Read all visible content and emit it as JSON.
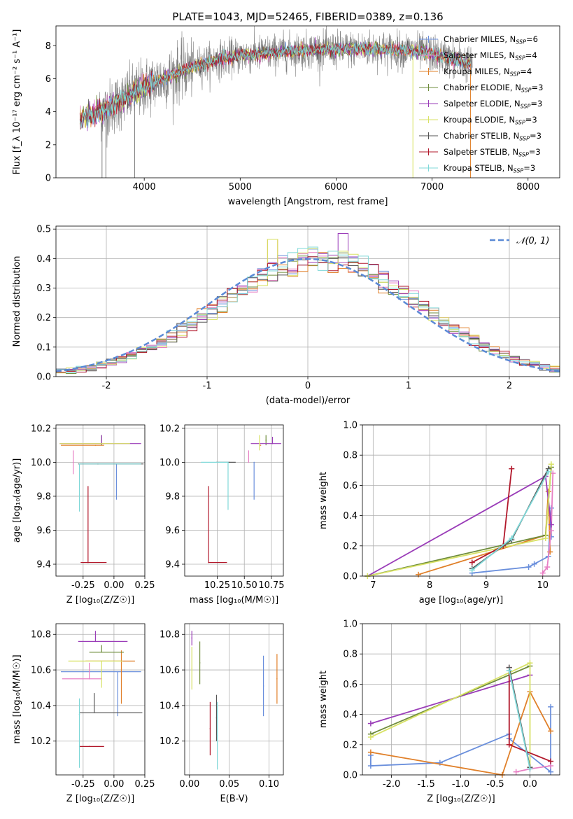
{
  "colors": {
    "Chabrier MILES": "#6a8fdc",
    "Salpeter MILES": "#e87fc4",
    "Kroupa MILES": "#e0802a",
    "Chabrier ELODIE": "#6f8d3c",
    "Salpeter ELODIE": "#9a3cb8",
    "Kroupa ELODIE": "#d8e266",
    "Chabrier STELIB": "#555555",
    "Salpeter STELIB": "#b2182b",
    "Kroupa STELIB": "#7fd8d8",
    "data": "#7f7f7f",
    "normal": "#5b8ad6"
  },
  "chart_data": [
    {
      "id": "spectrum",
      "type": "line",
      "title": "PLATE=1043, MJD=52465, FIBERID=0389, z=0.136",
      "xlabel": "wavelength [Angstrom, rest frame]",
      "ylabel": "Flux [f_λ 10⁻¹⁷ erg cm⁻² s⁻¹ A⁻¹]",
      "xlim": [
        3080,
        8330
      ],
      "ylim": [
        0,
        9.2
      ],
      "xticks": [
        "4000",
        "5000",
        "6000",
        "7000",
        "8000"
      ],
      "yticks": [
        "0",
        "2",
        "4",
        "6",
        "8"
      ],
      "legend_position": "right",
      "legend": [
        {
          "name": "Chabrier MILES",
          "sub": "N",
          "subscript": "SSP",
          "suffix": "=6"
        },
        {
          "name": "Salpeter MILES",
          "sub": "N",
          "subscript": "SSP",
          "suffix": "=4"
        },
        {
          "name": "Kroupa MILES",
          "sub": "N",
          "subscript": "SSP",
          "suffix": "=4"
        },
        {
          "name": "Chabrier ELODIE",
          "sub": "N",
          "subscript": "SSP",
          "suffix": "=3"
        },
        {
          "name": "Salpeter ELODIE",
          "sub": "N",
          "subscript": "SSP",
          "suffix": "=3"
        },
        {
          "name": "Kroupa ELODIE",
          "sub": "N",
          "subscript": "SSP",
          "suffix": "=3"
        },
        {
          "name": "Chabrier STELIB",
          "sub": "N",
          "subscript": "SSP",
          "suffix": "=3"
        },
        {
          "name": "Salpeter STELIB",
          "sub": "N",
          "subscript": "SSP",
          "suffix": "=3"
        },
        {
          "name": "Kroupa STELIB",
          "sub": "N",
          "subscript": "SSP",
          "suffix": "=3"
        }
      ],
      "continuum_x": [
        3330,
        3400,
        3600,
        3800,
        4000,
        4200,
        4400,
        4600,
        4800,
        5000,
        5200,
        5400,
        5600,
        5800,
        6000,
        6200,
        6400,
        6600,
        6800,
        7000,
        7200,
        7400
      ],
      "continuum_y": [
        3.4,
        3.7,
        4.1,
        4.8,
        5.5,
        6.0,
        6.5,
        6.9,
        7.2,
        7.4,
        7.5,
        7.6,
        7.7,
        7.75,
        7.75,
        7.8,
        7.8,
        7.75,
        7.7,
        7.5,
        7.2,
        6.9
      ],
      "model_x_range": [
        3330,
        7400
      ],
      "data_x_range": [
        3530,
        7420
      ],
      "data_drops_x": [
        3560,
        3600,
        3900,
        6800,
        7400
      ]
    },
    {
      "id": "residuals",
      "type": "step",
      "xlabel": "(data-model)/error",
      "ylabel": "Normed distribution",
      "xlim": [
        -2.5,
        2.5
      ],
      "ylim": [
        0,
        0.51
      ],
      "xticks": [
        "-2",
        "-1",
        "0",
        "1",
        "2"
      ],
      "yticks": [
        "0.0",
        "0.1",
        "0.2",
        "0.3",
        "0.4",
        "0.5"
      ],
      "legend_position": "upper right",
      "legend_label": "𝒩(0, 1)",
      "bin_width": 0.1,
      "bin_start": -2.5
    },
    {
      "id": "z-age",
      "type": "errorbar",
      "xlabel": "Z [log₁₀(Z/Z☉)]",
      "ylabel": "age  [log₁₀(age/yr)]",
      "xlim": [
        -0.47,
        0.25
      ],
      "ylim": [
        9.33,
        10.22
      ],
      "xticks": [
        "-0.25",
        "0.00",
        "0.25"
      ],
      "yticks": [
        "9.4",
        "9.6",
        "9.8",
        "10.0",
        "10.2"
      ],
      "points": [
        {
          "model": "Chabrier MILES",
          "x": 0.02,
          "xerr": [
            0.0,
            0.0
          ],
          "y": 9.99,
          "yerr": [
            0.21,
            0.0
          ]
        },
        {
          "model": "Salpeter MILES",
          "x": -0.33,
          "xerr": [
            0.0,
            0.0
          ],
          "y": 10.0,
          "yerr": [
            0.07,
            0.07
          ]
        },
        {
          "model": "Kroupa MILES",
          "x": -0.15,
          "xerr": [
            0.28,
            0.07
          ],
          "y": 10.1,
          "yerr": [
            0.0,
            0.0
          ]
        },
        {
          "model": "Chabrier ELODIE",
          "x": -0.1,
          "xerr": [
            0.0,
            0.0
          ],
          "y": 10.13,
          "yerr": [
            0.03,
            0.03
          ]
        },
        {
          "model": "Salpeter ELODIE",
          "x": -0.1,
          "xerr": [
            0.34,
            0.32
          ],
          "y": 10.11,
          "yerr": [
            0.0,
            0.05
          ]
        },
        {
          "model": "Kroupa ELODIE",
          "x": -0.07,
          "xerr": [
            0.37,
            0.2
          ],
          "y": 10.11,
          "yerr": [
            0.0,
            0.0
          ]
        },
        {
          "model": "Chabrier STELIB",
          "x": -0.13,
          "xerr": [
            0.16,
            0.37
          ],
          "y": 9.99,
          "yerr": [
            0.0,
            0.0
          ]
        },
        {
          "model": "Salpeter STELIB",
          "x": -0.21,
          "xerr": [
            0.06,
            0.15
          ],
          "y": 9.41,
          "yerr": [
            0.0,
            0.45
          ]
        },
        {
          "model": "Kroupa STELIB",
          "x": -0.28,
          "xerr": [
            0.0,
            0.5
          ],
          "y": 9.99,
          "yerr": [
            0.28,
            0.0
          ]
        }
      ]
    },
    {
      "id": "mass-age",
      "type": "errorbar",
      "xlabel": "mass [log₁₀(M/M☉)]",
      "ylabel": "",
      "xlim": [
        9.95,
        10.86
      ],
      "ylim": [
        9.33,
        10.22
      ],
      "xticks": [
        "10.25",
        "10.50",
        "10.75"
      ],
      "yticks": [
        "9.4",
        "9.6",
        "9.8",
        "10.0",
        "10.2"
      ],
      "points": [
        {
          "model": "Chabrier MILES",
          "x": 10.59,
          "xerr": [
            0.0,
            0.0
          ],
          "y": 10.0,
          "yerr": [
            0.22,
            0.0
          ]
        },
        {
          "model": "Salpeter MILES",
          "x": 10.54,
          "xerr": [
            0.0,
            0.0
          ],
          "y": 10.0,
          "yerr": [
            0.0,
            0.07
          ]
        },
        {
          "model": "Kroupa MILES",
          "x": 10.65,
          "xerr": [
            0.0,
            0.0
          ],
          "y": 10.1,
          "yerr": [
            0.0,
            0.0
          ]
        },
        {
          "model": "Chabrier ELODIE",
          "x": 10.7,
          "xerr": [
            0.0,
            0.0
          ],
          "y": 10.13,
          "yerr": [
            0.03,
            0.03
          ]
        },
        {
          "model": "Salpeter ELODIE",
          "x": 10.76,
          "xerr": [
            0.2,
            0.08
          ],
          "y": 10.11,
          "yerr": [
            0.0,
            0.04
          ]
        },
        {
          "model": "Kroupa ELODIE",
          "x": 10.64,
          "xerr": [
            0.0,
            0.0
          ],
          "y": 10.11,
          "yerr": [
            0.04,
            0.05
          ]
        },
        {
          "model": "Chabrier STELIB",
          "x": 10.36,
          "xerr": [
            0.12,
            0.06
          ],
          "y": 10.0,
          "yerr": [
            0.0,
            0.0
          ]
        },
        {
          "model": "Salpeter STELIB",
          "x": 10.17,
          "xerr": [
            0.0,
            0.17
          ],
          "y": 9.41,
          "yerr": [
            0.0,
            0.45
          ]
        },
        {
          "model": "Kroupa STELIB",
          "x": 10.35,
          "xerr": [
            0.25,
            0.0
          ],
          "y": 10.0,
          "yerr": [
            0.28,
            0.0
          ]
        }
      ]
    },
    {
      "id": "age-weight",
      "type": "line",
      "xlabel": "age  [log₁₀(age/yr)]",
      "ylabel": "mass weight",
      "xlim": [
        6.81,
        10.3
      ],
      "ylim": [
        0,
        1.0
      ],
      "xticks": [
        "7",
        "8",
        "9",
        "10"
      ],
      "yticks": [
        "0.0",
        "0.2",
        "0.4",
        "0.6",
        "0.8",
        "1.0"
      ],
      "series": [
        {
          "model": "Chabrier MILES",
          "x": [
            8.75,
            9.75,
            9.85,
            10.1,
            10.15,
            10.15
          ],
          "y": [
            0.02,
            0.06,
            0.08,
            0.13,
            0.45,
            0.26
          ]
        },
        {
          "model": "Kroupa MILES",
          "x": [
            7.8,
            10.05,
            10.1,
            10.13
          ],
          "y": [
            0.01,
            0.27,
            0.56,
            0.16
          ]
        },
        {
          "model": "Salpeter MILES",
          "x": [
            10.0,
            10.08,
            10.15,
            10.18
          ],
          "y": [
            0.02,
            0.06,
            0.3,
            0.68
          ]
        },
        {
          "model": "Salpeter ELODIE",
          "x": [
            6.9,
            10.05,
            10.15
          ],
          "y": [
            0.0,
            0.66,
            0.34
          ]
        },
        {
          "model": "Chabrier ELODIE",
          "x": [
            6.9,
            10.05,
            10.15
          ],
          "y": [
            0.0,
            0.27,
            0.72
          ]
        },
        {
          "model": "Kroupa ELODIE",
          "x": [
            6.9,
            10.05,
            10.15
          ],
          "y": [
            0.0,
            0.25,
            0.74
          ]
        },
        {
          "model": "Salpeter STELIB",
          "x": [
            8.75,
            9.3,
            9.45
          ],
          "y": [
            0.09,
            0.2,
            0.71
          ]
        },
        {
          "model": "Chabrier STELIB",
          "x": [
            8.75,
            9.45,
            10.1
          ],
          "y": [
            0.05,
            0.24,
            0.71
          ]
        },
        {
          "model": "Kroupa STELIB",
          "x": [
            8.75,
            9.45,
            10.1
          ],
          "y": [
            0.04,
            0.25,
            0.69
          ]
        }
      ]
    },
    {
      "id": "z-mass",
      "type": "errorbar",
      "xlabel": "Z [log₁₀(Z/Z☉)]",
      "ylabel": "mass [log₁₀(M/M☉)]",
      "xlim": [
        -0.47,
        0.25
      ],
      "ylim": [
        10.01,
        10.86
      ],
      "xticks": [
        "-0.25",
        "0.00",
        "0.25"
      ],
      "yticks": [
        "10.2",
        "10.4",
        "10.6",
        "10.8"
      ],
      "points": [
        {
          "model": "Chabrier MILES",
          "x": 0.03,
          "xerr": [
            0.46,
            0.19
          ],
          "y": 10.59,
          "yerr": [
            0.25,
            0.0
          ]
        },
        {
          "model": "Salpeter MILES",
          "x": -0.2,
          "xerr": [
            0.22,
            0.1
          ],
          "y": 10.55,
          "yerr": [
            0.0,
            0.09
          ]
        },
        {
          "model": "Kroupa MILES",
          "x": 0.06,
          "xerr": [
            0.29,
            0.11
          ],
          "y": 10.65,
          "yerr": [
            0.24,
            0.06
          ]
        },
        {
          "model": "Chabrier ELODIE",
          "x": -0.1,
          "xerr": [
            0.1,
            0.18
          ],
          "y": 10.7,
          "yerr": [
            0.0,
            0.04
          ]
        },
        {
          "model": "Salpeter ELODIE",
          "x": -0.15,
          "xerr": [
            0.14,
            0.26
          ],
          "y": 10.76,
          "yerr": [
            0.0,
            0.06
          ]
        },
        {
          "model": "Kroupa ELODIE",
          "x": -0.1,
          "xerr": [
            0.27,
            0.17
          ],
          "y": 10.65,
          "yerr": [
            0.15,
            0.0
          ]
        },
        {
          "model": "Chabrier STELIB",
          "x": -0.16,
          "xerr": [
            0.12,
            0.39
          ],
          "y": 10.36,
          "yerr": [
            0.0,
            0.11
          ]
        },
        {
          "model": "Salpeter STELIB",
          "x": -0.2,
          "xerr": [
            0.08,
            0.12
          ],
          "y": 10.17,
          "yerr": [
            0.0,
            0.0
          ]
        },
        {
          "model": "Kroupa STELIB",
          "x": -0.28,
          "xerr": [
            0.0,
            0.0
          ],
          "y": 10.35,
          "yerr": [
            0.3,
            0.09
          ]
        }
      ]
    },
    {
      "id": "ebv-mass",
      "type": "errorbar",
      "xlabel": "E(B-V)",
      "ylabel": "",
      "xlim": [
        -0.006,
        0.118
      ],
      "ylim": [
        10.01,
        10.86
      ],
      "xticks": [
        "0.00",
        "0.05",
        "0.10"
      ],
      "yticks": [
        "10.2",
        "10.4",
        "10.6",
        "10.8"
      ],
      "points": [
        {
          "model": "Chabrier MILES",
          "x": 0.093,
          "xerr": [
            0.0,
            0.0
          ],
          "y": 10.51,
          "yerr": [
            0.17,
            0.17
          ]
        },
        {
          "model": "Salpeter MILES",
          "x": 0.003,
          "xerr": [
            0.0,
            0.0
          ],
          "y": 10.74,
          "yerr": [
            0.0,
            0.0
          ]
        },
        {
          "model": "Kroupa MILES",
          "x": 0.11,
          "xerr": [
            0.0,
            0.0
          ],
          "y": 10.55,
          "yerr": [
            0.14,
            0.14
          ]
        },
        {
          "model": "Chabrier ELODIE",
          "x": 0.013,
          "xerr": [
            0.0,
            0.0
          ],
          "y": 10.64,
          "yerr": [
            0.12,
            0.12
          ]
        },
        {
          "model": "Salpeter ELODIE",
          "x": 0.003,
          "xerr": [
            0.0,
            0.0
          ],
          "y": 10.78,
          "yerr": [
            0.04,
            0.04
          ]
        },
        {
          "model": "Kroupa ELODIE",
          "x": 0.003,
          "xerr": [
            0.0,
            0.0
          ],
          "y": 10.61,
          "yerr": [
            0.12,
            0.12
          ]
        },
        {
          "model": "Chabrier STELIB",
          "x": 0.034,
          "xerr": [
            0.0,
            0.0
          ],
          "y": 10.33,
          "yerr": [
            0.13,
            0.13
          ]
        },
        {
          "model": "Salpeter STELIB",
          "x": 0.026,
          "xerr": [
            0.0,
            0.0
          ],
          "y": 10.27,
          "yerr": [
            0.15,
            0.15
          ]
        },
        {
          "model": "Kroupa STELIB",
          "x": 0.035,
          "xerr": [
            0.0,
            0.0
          ],
          "y": 10.23,
          "yerr": [
            0.19,
            0.19
          ]
        }
      ]
    },
    {
      "id": "z-weight",
      "type": "line",
      "xlabel": "Z [log₁₀(Z/Z☉)]",
      "ylabel": "mass weight",
      "xlim": [
        -2.42,
        0.43
      ],
      "ylim": [
        0,
        1.0
      ],
      "xticks": [
        "-2.0",
        "-1.5",
        "-1.0",
        "-0.5",
        "0.0"
      ],
      "yticks": [
        "0.0",
        "0.2",
        "0.4",
        "0.6",
        "0.8",
        "1.0"
      ],
      "series": [
        {
          "model": "Chabrier MILES",
          "x": [
            -2.3,
            -2.3,
            -1.3,
            -0.3,
            -0.3,
            0.3,
            0.3
          ],
          "y": [
            0.13,
            0.06,
            0.08,
            0.27,
            0.24,
            0.02,
            0.45
          ]
        },
        {
          "model": "Kroupa MILES",
          "x": [
            -2.3,
            -0.4,
            0.0,
            0.3
          ],
          "y": [
            0.15,
            0.0,
            0.55,
            0.29
          ]
        },
        {
          "model": "Salpeter MILES",
          "x": [
            -0.2,
            0.0,
            0.3
          ],
          "y": [
            0.02,
            0.04,
            0.06
          ]
        },
        {
          "model": "Salpeter ELODIE",
          "x": [
            -2.3,
            0.0
          ],
          "y": [
            0.34,
            0.66
          ]
        },
        {
          "model": "Chabrier ELODIE",
          "x": [
            -2.3,
            0.0
          ],
          "y": [
            0.27,
            0.72
          ]
        },
        {
          "model": "Kroupa ELODIE",
          "x": [
            -2.3,
            0.0,
            0.0
          ],
          "y": [
            0.25,
            0.74,
            0.05
          ]
        },
        {
          "model": "Salpeter STELIB",
          "x": [
            -0.3,
            -0.3,
            0.3
          ],
          "y": [
            0.71,
            0.2,
            0.09
          ]
        },
        {
          "model": "Chabrier STELIB",
          "x": [
            -0.3,
            0.0
          ],
          "y": [
            0.71,
            0.05
          ]
        },
        {
          "model": "Kroupa STELIB",
          "x": [
            -0.3,
            0.0
          ],
          "y": [
            0.69,
            0.04
          ]
        }
      ]
    }
  ]
}
